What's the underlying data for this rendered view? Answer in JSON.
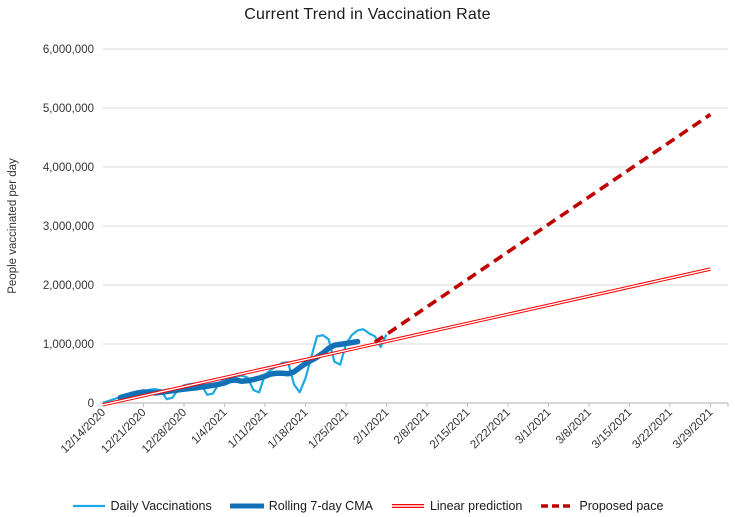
{
  "title": "Current Trend in Vaccination Rate",
  "y_axis": {
    "label": "People vaccinated per day",
    "tick_labels": [
      "0",
      "1,000,000",
      "2,000,000",
      "3,000,000",
      "4,000,000",
      "5,000,000",
      "6,000,000"
    ]
  },
  "x_axis": {
    "tick_labels": [
      "12/14/2020",
      "12/21/2020",
      "12/28/2020",
      "1/4/2021",
      "1/11/2021",
      "1/18/2021",
      "1/25/2021",
      "2/1/2021",
      "2/8/2021",
      "2/15/2021",
      "2/22/2021",
      "3/1/2021",
      "3/8/2021",
      "3/15/2021",
      "3/22/2021",
      "3/29/2021"
    ]
  },
  "colors": {
    "daily": "#1CA8E1",
    "cma": "#1271B6",
    "linear": "#FF0000",
    "proposed": "#C00000",
    "gridline": "#D9D9D9",
    "axis": "#BFBFBF",
    "tick_text": "#333333"
  },
  "chart_data": {
    "type": "line",
    "title": "Current Trend in Vaccination Rate",
    "xlabel": "",
    "ylabel": "People vaccinated per day",
    "ylim": [
      0,
      6000000
    ],
    "x_unit": "days since 12/14/2020 (weekly tick labels)",
    "value_unit": "thousands of people vaccinated per day",
    "x_tick_labels": [
      "12/14/2020",
      "12/21/2020",
      "12/28/2020",
      "1/4/2021",
      "1/11/2021",
      "1/18/2021",
      "1/25/2021",
      "2/1/2021",
      "2/8/2021",
      "2/15/2021",
      "2/22/2021",
      "3/1/2021",
      "3/8/2021",
      "3/15/2021",
      "3/22/2021",
      "3/29/2021"
    ],
    "grid": "horizontal",
    "legend_position": "bottom",
    "series": [
      {
        "name": "Daily Vaccinations",
        "style": "solid-thin",
        "color": "#1CA8E1",
        "x_start_day": 0,
        "x_step": 1,
        "values": [
          5,
          35,
          70,
          100,
          125,
          145,
          165,
          200,
          225,
          235,
          215,
          65,
          90,
          230,
          300,
          320,
          330,
          310,
          140,
          160,
          330,
          400,
          430,
          450,
          465,
          430,
          220,
          180,
          480,
          560,
          620,
          680,
          690,
          320,
          180,
          420,
          780,
          1130,
          1150,
          1080,
          700,
          650,
          1000,
          1150,
          1230,
          1250,
          1180,
          1130,
          950,
          1160
        ]
      },
      {
        "name": "Rolling 7-day CMA",
        "style": "solid-thick",
        "color": "#1271B6",
        "x_start_day": 3,
        "x_step": 1,
        "values": [
          92,
          120,
          147,
          171,
          187,
          179,
          171,
          180,
          194,
          208,
          221,
          235,
          246,
          256,
          270,
          284,
          300,
          317,
          339,
          381,
          389,
          368,
          379,
          398,
          422,
          453,
          490,
          504,
          504,
          496,
          527,
          600,
          667,
          723,
          777,
          844,
          927,
          980,
          994,
          1009,
          1023,
          1040
        ]
      },
      {
        "name": "Linear prediction",
        "style": "double-thin",
        "color": "#FF0000",
        "x_days": [
          0,
          105
        ],
        "values": [
          -30,
          2270
        ]
      },
      {
        "name": "Proposed pace",
        "style": "dashed",
        "color": "#C00000",
        "x_days": [
          47,
          105
        ],
        "values": [
          1030,
          4890
        ]
      }
    ]
  }
}
